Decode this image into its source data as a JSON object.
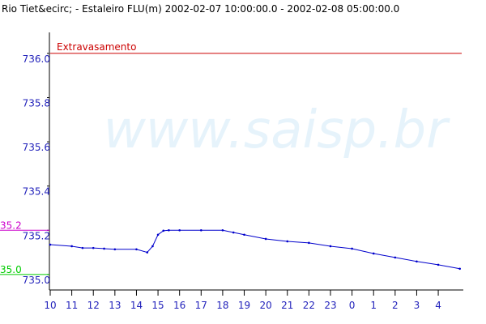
{
  "chart_data": {
    "type": "line",
    "title": "Rio Tiet&ecirc; - Estaleiro FLU(m) 2002-02-07 10:00:00.0 - 2002-02-08 05:00:00.0",
    "watermark": "www.saisp.br",
    "x": [
      0,
      1,
      1.5,
      2,
      2.5,
      3,
      4,
      4.5,
      4.75,
      5,
      5.25,
      5.5,
      6,
      7,
      8,
      8.5,
      9,
      10,
      11,
      12,
      13,
      14,
      15,
      16,
      17,
      18,
      19
    ],
    "series": [
      {
        "name": "FLU",
        "color": "#0000cc",
        "values": [
          735.135,
          735.128,
          735.12,
          735.12,
          735.117,
          735.114,
          735.114,
          735.1,
          735.128,
          735.18,
          735.198,
          735.2,
          735.2,
          735.2,
          735.2,
          735.19,
          735.18,
          735.161,
          735.15,
          735.143,
          735.128,
          735.117,
          735.095,
          735.077,
          735.059,
          735.044,
          735.026
        ]
      }
    ],
    "xlim": [
      0,
      19.05
    ],
    "xticks": [
      {
        "value": 0,
        "label": "10"
      },
      {
        "value": 1,
        "label": "11"
      },
      {
        "value": 2,
        "label": "12"
      },
      {
        "value": 3,
        "label": "13"
      },
      {
        "value": 4,
        "label": "14"
      },
      {
        "value": 5,
        "label": "15"
      },
      {
        "value": 6,
        "label": "16"
      },
      {
        "value": 7,
        "label": "17"
      },
      {
        "value": 8,
        "label": "18"
      },
      {
        "value": 9,
        "label": "19"
      },
      {
        "value": 10,
        "label": "20"
      },
      {
        "value": 11,
        "label": "21"
      },
      {
        "value": 12,
        "label": "22"
      },
      {
        "value": 13,
        "label": "23"
      },
      {
        "value": 14,
        "label": "0"
      },
      {
        "value": 15,
        "label": "1"
      },
      {
        "value": 16,
        "label": "2"
      },
      {
        "value": 17,
        "label": "3"
      },
      {
        "value": 18,
        "label": "4"
      }
    ],
    "ylim": [
      734.93,
      736.095
    ],
    "yticks": [
      {
        "value": 735,
        "label": "735.0"
      },
      {
        "value": 735.2,
        "label": "735.2"
      },
      {
        "value": 735.4,
        "label": "735.4"
      },
      {
        "value": 735.6,
        "label": "735.6"
      },
      {
        "value": 735.8,
        "label": "735.8"
      },
      {
        "value": 736,
        "label": "736.0"
      }
    ],
    "reference_lines": [
      {
        "value": 736,
        "label": "Extravasamento",
        "color": "#cc0000",
        "span": "plot"
      },
      {
        "value": 735.2,
        "label": "35.2",
        "color": "#cc00cc",
        "span": "margin"
      },
      {
        "value": 735,
        "label": "35.0",
        "color": "#00cc00",
        "span": "margin"
      }
    ]
  }
}
